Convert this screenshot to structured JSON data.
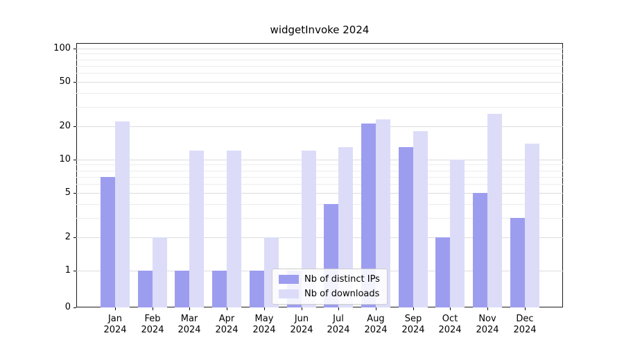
{
  "chart_data": {
    "type": "bar",
    "title": "widgetInvoke 2024",
    "x_year": "2024",
    "categories": [
      "Jan",
      "Feb",
      "Mar",
      "Apr",
      "May",
      "Jun",
      "Jul",
      "Aug",
      "Sep",
      "Oct",
      "Nov",
      "Dec"
    ],
    "series": [
      {
        "name": "Nb of distinct IPs",
        "color": "#9d9df0",
        "values": [
          7,
          1,
          1,
          1,
          1,
          1,
          4,
          21,
          13,
          2,
          5,
          3
        ]
      },
      {
        "name": "Nb of downloads",
        "color": "#dcdcf9",
        "values": [
          22,
          2,
          12,
          12,
          2,
          12,
          13,
          23,
          18,
          10,
          26,
          14
        ]
      }
    ],
    "yscale": "symlog",
    "ylim": [
      0,
      112
    ],
    "yticks": [
      0,
      1,
      2,
      5,
      10,
      20,
      50,
      100
    ],
    "yticks_minor": [
      3,
      4,
      6,
      7,
      8,
      9,
      30,
      40,
      60,
      70,
      80,
      90
    ],
    "grid": true,
    "legend_position": "lower center",
    "xlabel": "",
    "ylabel": ""
  }
}
